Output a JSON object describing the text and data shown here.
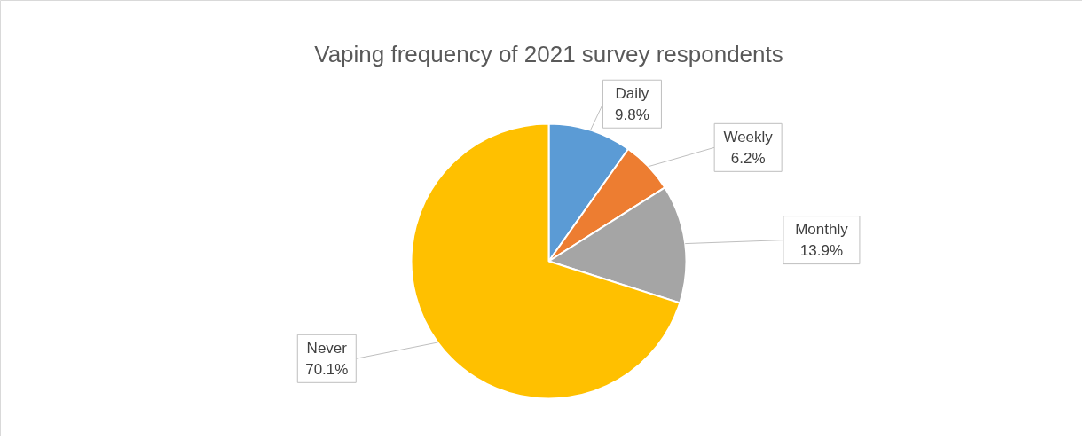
{
  "chart_data": {
    "type": "pie",
    "title": "Vaping frequency of 2021 survey respondents",
    "categories": [
      "Daily",
      "Weekly",
      "Monthly",
      "Never"
    ],
    "values": [
      9.8,
      6.2,
      13.9,
      70.1
    ],
    "colors": [
      "#5b9bd5",
      "#ed7d31",
      "#a5a5a5",
      "#ffc000"
    ],
    "value_labels": [
      "9.8%",
      "6.2%",
      "13.9%",
      "70.1%"
    ]
  }
}
